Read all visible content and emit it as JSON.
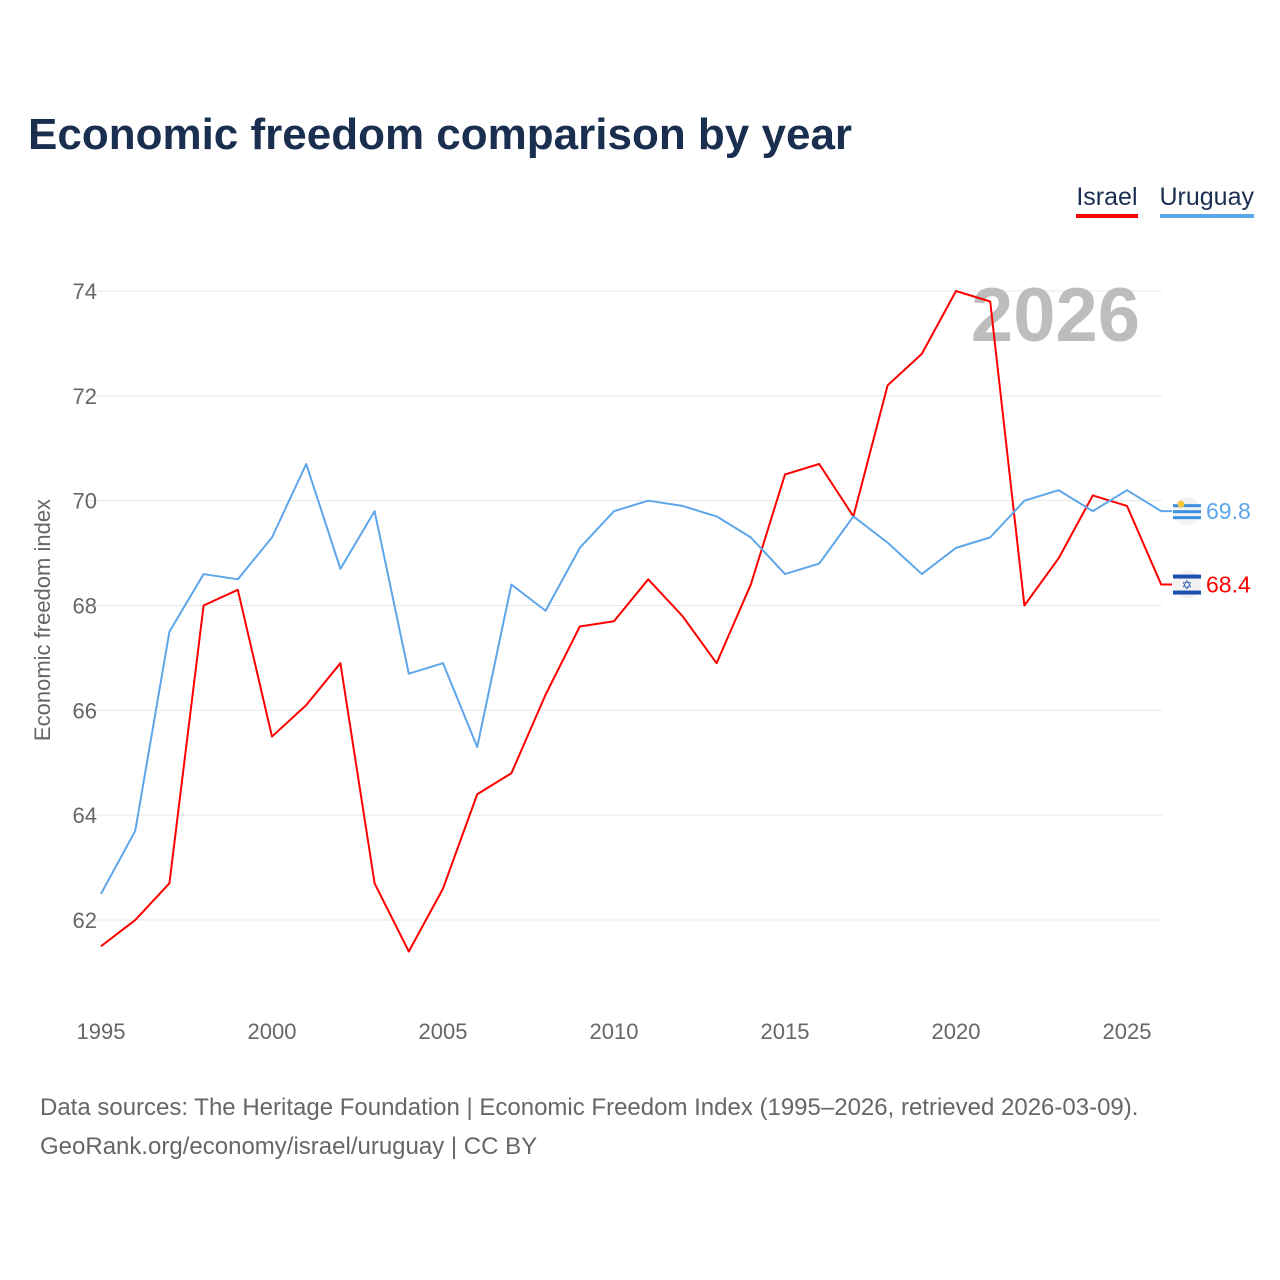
{
  "title": "Economic freedom comparison by year",
  "source_line1": "Data sources: The Heritage Foundation | Economic Freedom Index (1995–2026, retrieved 2026-03-09).",
  "source_line2": "GeoRank.org/economy/israel/uruguay | CC BY",
  "chart_data": {
    "type": "line",
    "title": "Economic freedom comparison by year",
    "ylabel": "Economic freedom index",
    "xlabel": "",
    "year_watermark": "2026",
    "xlim": [
      1995,
      2026
    ],
    "ylim": [
      60.5,
      75
    ],
    "xticks": [
      1995,
      2000,
      2005,
      2010,
      2015,
      2020,
      2025
    ],
    "yticks": [
      62,
      64,
      66,
      68,
      70,
      72,
      74
    ],
    "grid": true,
    "legend_position": "top-right",
    "x": [
      1995,
      1996,
      1997,
      1998,
      1999,
      2000,
      2001,
      2002,
      2003,
      2004,
      2005,
      2006,
      2007,
      2008,
      2009,
      2010,
      2011,
      2012,
      2013,
      2014,
      2015,
      2016,
      2017,
      2018,
      2019,
      2020,
      2021,
      2022,
      2023,
      2024,
      2025,
      2026
    ],
    "series": [
      {
        "name": "Israel",
        "color": "#ff0000",
        "end_label": "68.4",
        "flag": "israel-flag",
        "values": [
          61.5,
          62.0,
          62.7,
          68.0,
          68.3,
          65.5,
          66.1,
          66.9,
          62.7,
          61.4,
          62.6,
          64.4,
          64.8,
          66.3,
          67.6,
          67.7,
          68.5,
          67.8,
          66.9,
          68.4,
          70.5,
          70.7,
          69.7,
          72.2,
          72.8,
          74.0,
          73.8,
          68.0,
          68.9,
          70.1,
          69.9,
          68.4
        ]
      },
      {
        "name": "Uruguay",
        "color": "#5ea6ea",
        "end_label": "69.8",
        "flag": "uruguay-flag",
        "values": [
          62.5,
          63.7,
          67.5,
          68.6,
          68.5,
          69.3,
          70.7,
          68.7,
          69.8,
          66.7,
          66.9,
          65.3,
          68.4,
          67.9,
          69.1,
          69.8,
          70.0,
          69.9,
          69.7,
          69.3,
          68.6,
          68.8,
          69.7,
          69.2,
          68.6,
          69.1,
          69.3,
          70.0,
          70.2,
          69.8,
          70.2,
          69.8
        ]
      }
    ]
  }
}
